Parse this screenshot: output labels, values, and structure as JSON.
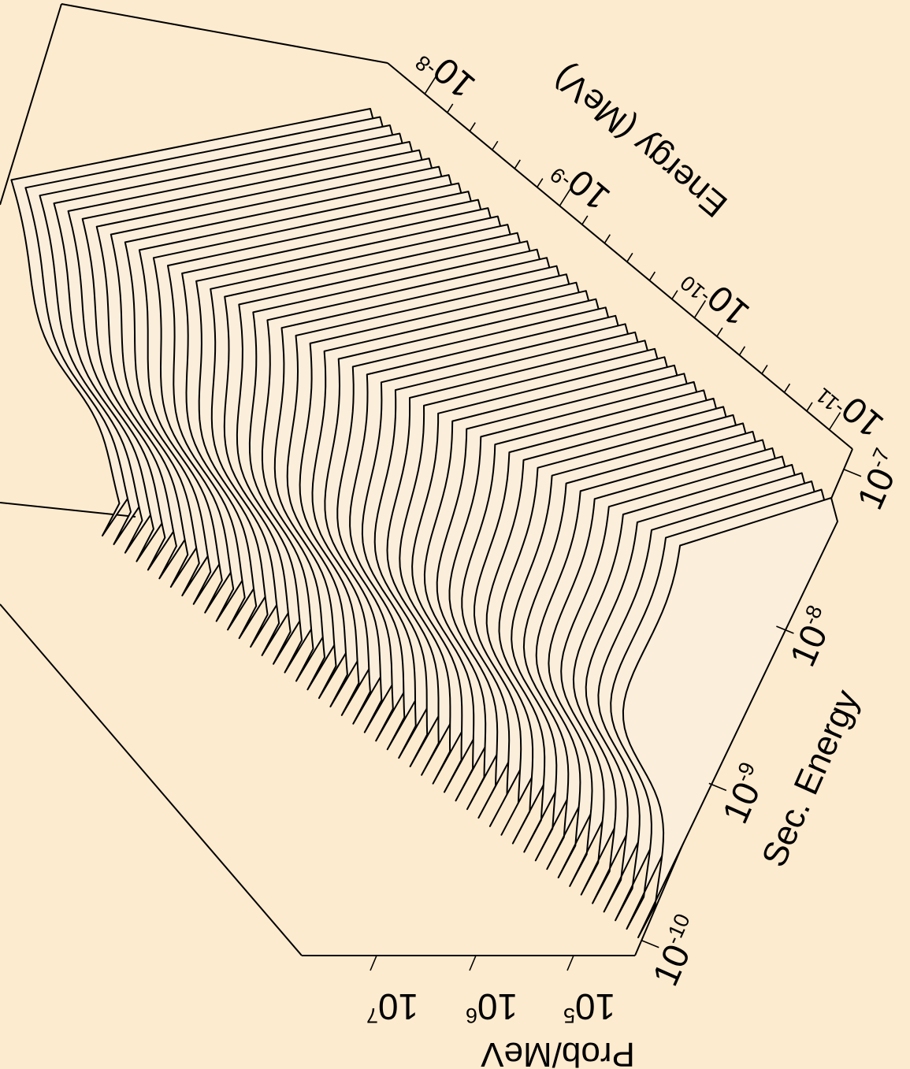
{
  "chart_data": {
    "type": "area",
    "projection": "3d-waterfall",
    "colors": {
      "background": "#FDEBCF",
      "surface": "#FBEEDB",
      "line": "#000000"
    },
    "axes": {
      "energy": {
        "label": "Energy (MeV)",
        "scale": "log",
        "ticks": [
          {
            "base": "10",
            "exp": "-8"
          },
          {
            "base": "10",
            "exp": "-9"
          },
          {
            "base": "10",
            "exp": "-10"
          },
          {
            "base": "10",
            "exp": "-11"
          }
        ]
      },
      "sec_energy": {
        "label": "Sec. Energy",
        "scale": "log",
        "ticks": [
          {
            "base": "10",
            "exp": "-10"
          },
          {
            "base": "10",
            "exp": "-9"
          },
          {
            "base": "10",
            "exp": "-8"
          },
          {
            "base": "10",
            "exp": "-7"
          }
        ]
      },
      "prob": {
        "label": "Prob/MeV",
        "scale": "log",
        "ticks": [
          {
            "base": "10",
            "exp": "7"
          },
          {
            "base": "10",
            "exp": "6"
          },
          {
            "base": "10",
            "exp": "5"
          }
        ]
      }
    },
    "series_count": 48
  }
}
